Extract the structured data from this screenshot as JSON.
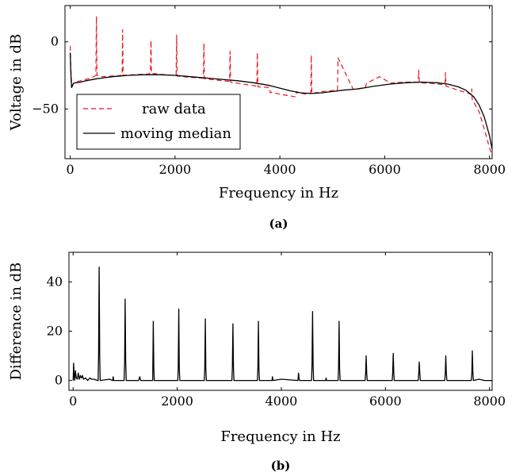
{
  "chart_data": [
    {
      "type": "line",
      "caption": "(a)",
      "xlabel": "Frequency in Hz",
      "ylabel": "Voltage in dB",
      "xlim": [
        -100,
        8050
      ],
      "ylim": [
        -87,
        27
      ],
      "x_ticks": [
        0,
        2000,
        4000,
        6000,
        8000
      ],
      "y_ticks": [
        0,
        -50
      ],
      "x_tick_labels": [
        "0",
        "2000",
        "4000",
        "6000",
        "8000"
      ],
      "y_tick_labels": [
        "0",
        "−50"
      ],
      "grid": false,
      "legend_position": "bottom-left",
      "series": [
        {
          "name": "raw data",
          "style": "dashed",
          "color": "#e8141e",
          "x": [
            0,
            12,
            30,
            60,
            100,
            200,
            400,
            490,
            500,
            510,
            600,
            990,
            1000,
            1010,
            1200,
            1500,
            1530,
            1540,
            1550,
            1800,
            2020,
            2030,
            2040,
            2300,
            2540,
            2550,
            2560,
            2800,
            3040,
            3050,
            3060,
            3300,
            3560,
            3570,
            3580,
            3800,
            3820,
            3840,
            4000,
            4300,
            4320,
            4340,
            4500,
            4590,
            4600,
            4610,
            4800,
            5090,
            5100,
            5110,
            5400,
            5630,
            5640,
            5650,
            5900,
            6130,
            6140,
            6150,
            6400,
            6640,
            6650,
            6660,
            6900,
            7150,
            7160,
            7170,
            7400,
            7650,
            7660,
            7670,
            7800,
            7900,
            8000,
            8050
          ],
          "y": [
            -3,
            -20,
            -33,
            -31,
            -30,
            -29,
            -27,
            -25,
            19,
            -25,
            -26,
            -25,
            9,
            -25,
            -24.5,
            -24,
            -23,
            1,
            -23.5,
            -24.5,
            -25,
            5,
            -25.5,
            -26.5,
            -27,
            -1,
            -27.5,
            -28.5,
            -29.5,
            -7,
            -30,
            -31.5,
            -33,
            -8,
            -33.5,
            -34,
            -38,
            -37.5,
            -39,
            -41,
            -37,
            -38,
            -39,
            -38,
            -10,
            -38.5,
            -37,
            -36,
            -35,
            -12,
            -35.5,
            -34,
            -33,
            -31,
            -26,
            -31,
            -31,
            -30.5,
            -30,
            -30,
            -21,
            -30.5,
            -31,
            -32,
            -23,
            -33,
            -36,
            -39,
            -35,
            -43,
            -52,
            -65,
            -79,
            -85
          ]
        },
        {
          "name": "moving median",
          "style": "solid",
          "color": "#000000",
          "x": [
            0,
            10,
            25,
            40,
            60,
            100,
            200,
            300,
            500,
            800,
            1100,
            1400,
            1700,
            2000,
            2300,
            2600,
            2900,
            3200,
            3500,
            3800,
            4000,
            4200,
            4400,
            4600,
            4800,
            5000,
            5200,
            5500,
            5800,
            6100,
            6400,
            6700,
            7000,
            7200,
            7400,
            7550,
            7700,
            7800,
            7900,
            8000,
            8050
          ],
          "y": [
            -8,
            -22,
            -34,
            -33,
            -31,
            -30.5,
            -30,
            -29,
            -27.5,
            -26,
            -25,
            -24.5,
            -24.5,
            -25,
            -26,
            -27,
            -28,
            -29,
            -30.5,
            -32.5,
            -34.5,
            -36.5,
            -38,
            -38.5,
            -38,
            -37,
            -36,
            -35,
            -33,
            -31.5,
            -30.5,
            -30,
            -30.5,
            -31.5,
            -33.5,
            -36,
            -41,
            -47,
            -56,
            -70,
            -80
          ]
        }
      ]
    },
    {
      "type": "line",
      "caption": "(b)",
      "xlabel": "Frequency in Hz",
      "ylabel": "Difference in dB",
      "xlim": [
        -80,
        8050
      ],
      "ylim": [
        -4,
        52
      ],
      "x_ticks": [
        0,
        2000,
        4000,
        6000,
        8000
      ],
      "y_ticks": [
        0,
        20,
        40
      ],
      "x_tick_labels": [
        "0",
        "2000",
        "4000",
        "6000",
        "8000"
      ],
      "y_tick_labels": [
        "0",
        "20",
        "40"
      ],
      "grid": false,
      "series": [
        {
          "name": "",
          "style": "solid",
          "color": "#000000",
          "x": [
            0,
            10,
            20,
            30,
            45,
            60,
            80,
            100,
            120,
            140,
            160,
            180,
            200,
            240,
            280,
            320,
            360,
            400,
            470,
            480,
            490,
            500,
            510,
            520,
            700,
            760,
            770,
            780,
            980,
            990,
            1000,
            1010,
            1020,
            1260,
            1280,
            1300,
            1500,
            1530,
            1540,
            1550,
            1560,
            2010,
            2020,
            2030,
            2040,
            2050,
            2520,
            2530,
            2540,
            2550,
            2560,
            3050,
            3060,
            3070,
            3080,
            3090,
            3540,
            3550,
            3560,
            3570,
            3580,
            3820,
            3830,
            3840,
            4000,
            4320,
            4330,
            4340,
            4350,
            4580,
            4590,
            4600,
            4610,
            4620,
            4850,
            4860,
            4870,
            5090,
            5100,
            5110,
            5120,
            5130,
            5610,
            5620,
            5630,
            5640,
            5650,
            6130,
            6140,
            6150,
            6160,
            6170,
            6630,
            6640,
            6650,
            6660,
            6670,
            7140,
            7150,
            7160,
            7170,
            7180,
            7650,
            7660,
            7670,
            7680,
            7690,
            7800,
            7900,
            8000,
            8050
          ],
          "y": [
            0,
            7,
            2,
            0,
            4,
            1,
            0.5,
            3,
            0.5,
            2,
            1,
            2,
            0.5,
            1,
            0,
            1,
            0.5,
            0.5,
            0,
            0,
            10,
            46,
            10,
            0,
            0.5,
            0,
            1.5,
            0,
            0,
            8,
            33,
            8,
            0,
            0,
            1.5,
            0,
            0,
            0,
            24,
            5,
            0,
            0,
            5,
            29,
            5,
            0,
            0,
            5,
            25,
            5,
            0,
            0,
            5,
            23,
            5,
            0,
            0,
            5,
            24,
            5,
            0,
            0,
            1.5,
            0,
            0.5,
            0,
            3,
            1,
            0,
            0,
            6,
            28,
            6,
            0,
            0,
            1,
            0,
            0,
            5,
            24,
            5,
            0,
            0,
            3,
            10,
            3,
            0,
            0,
            3,
            11,
            3,
            0,
            0,
            3,
            7.5,
            3,
            0,
            0,
            3,
            10,
            3,
            0,
            0,
            3,
            12,
            3,
            0,
            0.5,
            0,
            0,
            0
          ]
        }
      ]
    }
  ]
}
